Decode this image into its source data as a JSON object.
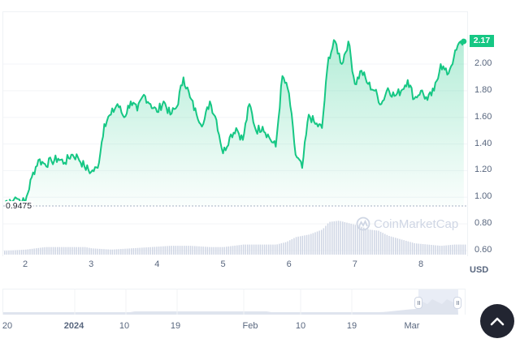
{
  "chart_data": {
    "type": "area",
    "title": "",
    "xlabel": "",
    "ylabel": "USD",
    "currency_label": "USD",
    "current_price": "2.17",
    "baseline": "0.9475",
    "ylim": [
      0.55,
      2.25
    ],
    "y_ticks": [
      "2.00",
      "1.80",
      "1.60",
      "1.40",
      "1.20",
      "1.00",
      "0.80",
      "0.60"
    ],
    "x_ticks": [
      "2",
      "3",
      "4",
      "5",
      "6",
      "7",
      "8"
    ],
    "grid": true,
    "line_color": "#16c784",
    "volume_color": "#cfd6e4",
    "series": [
      {
        "name": "Price",
        "x": [
          1.7,
          1.85,
          2.0,
          2.1,
          2.2,
          2.3,
          2.4,
          2.5,
          2.6,
          2.7,
          2.8,
          2.9,
          3.0,
          3.1,
          3.2,
          3.3,
          3.4,
          3.5,
          3.6,
          3.7,
          3.8,
          3.9,
          4.0,
          4.1,
          4.2,
          4.3,
          4.4,
          4.5,
          4.6,
          4.7,
          4.8,
          4.9,
          5.0,
          5.1,
          5.2,
          5.3,
          5.4,
          5.5,
          5.6,
          5.7,
          5.8,
          5.9,
          6.0,
          6.1,
          6.2,
          6.3,
          6.4,
          6.5,
          6.6,
          6.7,
          6.8,
          6.9,
          7.0,
          7.1,
          7.2,
          7.3,
          7.4,
          7.5,
          7.6,
          7.7,
          7.8,
          7.9,
          8.0,
          8.1,
          8.2,
          8.3,
          8.4,
          8.5,
          8.6,
          8.65
        ],
        "values": [
          0.97,
          1.0,
          0.96,
          1.15,
          1.28,
          1.25,
          1.27,
          1.29,
          1.26,
          1.32,
          1.3,
          1.23,
          1.19,
          1.22,
          1.55,
          1.62,
          1.7,
          1.6,
          1.72,
          1.65,
          1.77,
          1.7,
          1.64,
          1.72,
          1.62,
          1.68,
          1.9,
          1.75,
          1.62,
          1.55,
          1.72,
          1.58,
          1.33,
          1.45,
          1.52,
          1.43,
          1.7,
          1.5,
          1.53,
          1.45,
          1.38,
          1.91,
          1.78,
          1.32,
          1.22,
          1.62,
          1.55,
          1.52,
          2.05,
          2.17,
          2.0,
          2.17,
          1.85,
          1.95,
          1.85,
          1.8,
          1.7,
          1.82,
          1.76,
          1.8,
          1.88,
          1.74,
          1.8,
          1.73,
          1.8,
          2.0,
          1.92,
          2.05,
          2.17,
          2.17
        ]
      },
      {
        "name": "Volume",
        "x": [
          1.7,
          2.0,
          2.3,
          2.6,
          2.9,
          3.0,
          3.3,
          3.6,
          3.9,
          4.2,
          4.5,
          4.8,
          5.0,
          5.3,
          5.6,
          5.8,
          5.95,
          6.1,
          6.3,
          6.5,
          6.6,
          6.75,
          6.9,
          7.05,
          7.2,
          7.35,
          7.5,
          7.7,
          7.9,
          8.1,
          8.3,
          8.5,
          8.65
        ],
        "values": [
          3,
          4,
          6,
          6,
          6,
          5,
          4,
          5,
          6,
          7,
          7,
          6,
          6,
          8,
          8,
          8,
          10,
          14,
          16,
          20,
          26,
          27,
          25,
          23,
          20,
          19,
          15,
          12,
          9,
          8,
          7,
          8,
          8
        ]
      }
    ],
    "navigator": {
      "x_ticks": [
        "20",
        "2024",
        "10",
        "19",
        "Feb",
        "10",
        "19",
        "Mar"
      ],
      "bold_tick": "2024",
      "selection_start": "Mar",
      "selection_end": "latest"
    },
    "legend": null,
    "watermark": "CoinMarketCap"
  },
  "ui": {
    "scroll_top_button": "scroll-to-top"
  }
}
